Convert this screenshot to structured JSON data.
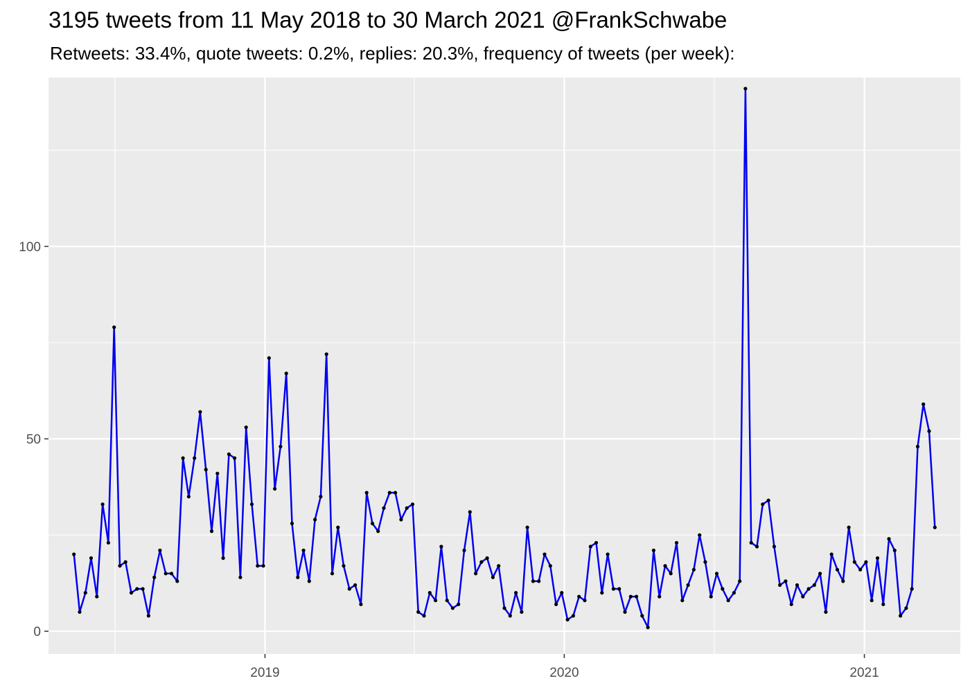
{
  "chart_data": {
    "type": "line",
    "title": "3195 tweets from 11 May 2018 to 30 March 2021 @FrankSchwabe",
    "subtitle": "Retweets: 33.4%, quote tweets: 0.2%, replies: 20.3%, frequency of tweets (per week):",
    "xlabel": "",
    "ylabel": "",
    "x_axis": {
      "type": "date",
      "ticks": [
        "2019",
        "2020",
        "2021"
      ],
      "range": [
        "2018-04-12",
        "2021-04-28"
      ]
    },
    "y_axis": {
      "ticks": [
        0,
        50,
        100
      ],
      "range": [
        -5.9,
        143.9
      ]
    },
    "grid": true,
    "legend": "none",
    "colors": {
      "line": "#0000ee",
      "point": "#000000",
      "panel": "#ebebeb",
      "grid": "#ffffff"
    },
    "series": [
      {
        "x": [
          "2018-05-13",
          "2018-05-20",
          "2018-05-27",
          "2018-06-03",
          "2018-06-10",
          "2018-06-17",
          "2018-06-24",
          "2018-07-01",
          "2018-07-08",
          "2018-07-15",
          "2018-07-22",
          "2018-07-29",
          "2018-08-05",
          "2018-08-12",
          "2018-08-19",
          "2018-08-26",
          "2018-09-02",
          "2018-09-09",
          "2018-09-16",
          "2018-09-23",
          "2018-09-30",
          "2018-10-07",
          "2018-10-14",
          "2018-10-21",
          "2018-10-28",
          "2018-11-04",
          "2018-11-11",
          "2018-11-18",
          "2018-11-25",
          "2018-12-02",
          "2018-12-09",
          "2018-12-16",
          "2018-12-23",
          "2018-12-30",
          "2019-01-06",
          "2019-01-13",
          "2019-01-20",
          "2019-01-27",
          "2019-02-03",
          "2019-02-10",
          "2019-02-17",
          "2019-02-24",
          "2019-03-03",
          "2019-03-10",
          "2019-03-17",
          "2019-03-24",
          "2019-03-31",
          "2019-04-07",
          "2019-04-14",
          "2019-04-21",
          "2019-04-28",
          "2019-05-05",
          "2019-05-12",
          "2019-05-19",
          "2019-05-26",
          "2019-06-02",
          "2019-06-09",
          "2019-06-16",
          "2019-06-23",
          "2019-06-30",
          "2019-07-07",
          "2019-07-14",
          "2019-07-21",
          "2019-07-28",
          "2019-08-04",
          "2019-08-11",
          "2019-08-18",
          "2019-08-25",
          "2019-09-01",
          "2019-09-08",
          "2019-09-15",
          "2019-09-22",
          "2019-09-29",
          "2019-10-06",
          "2019-10-13",
          "2019-10-20",
          "2019-10-27",
          "2019-11-03",
          "2019-11-10",
          "2019-11-17",
          "2019-11-24",
          "2019-12-01",
          "2019-12-08",
          "2019-12-15",
          "2019-12-22",
          "2019-12-29",
          "2020-01-05",
          "2020-01-12",
          "2020-01-19",
          "2020-01-26",
          "2020-02-02",
          "2020-02-09",
          "2020-02-16",
          "2020-02-23",
          "2020-03-01",
          "2020-03-08",
          "2020-03-15",
          "2020-03-22",
          "2020-03-29",
          "2020-04-05",
          "2020-04-12",
          "2020-04-19",
          "2020-04-26",
          "2020-05-03",
          "2020-05-10",
          "2020-05-17",
          "2020-05-24",
          "2020-05-31",
          "2020-06-07",
          "2020-06-14",
          "2020-06-21",
          "2020-06-28",
          "2020-07-05",
          "2020-07-12",
          "2020-07-19",
          "2020-07-26",
          "2020-08-02",
          "2020-08-09",
          "2020-08-16",
          "2020-08-23",
          "2020-08-30",
          "2020-09-06",
          "2020-09-13",
          "2020-09-20",
          "2020-09-27",
          "2020-10-04",
          "2020-10-11",
          "2020-10-18",
          "2020-10-25",
          "2020-11-01",
          "2020-11-08",
          "2020-11-15",
          "2020-11-22",
          "2020-11-29",
          "2020-12-06",
          "2020-12-13",
          "2020-12-20",
          "2020-12-27",
          "2021-01-03",
          "2021-01-10",
          "2021-01-17",
          "2021-01-24",
          "2021-01-31",
          "2021-02-07",
          "2021-02-14",
          "2021-02-21",
          "2021-02-28",
          "2021-03-07",
          "2021-03-14",
          "2021-03-21",
          "2021-03-28"
        ],
        "y": [
          20,
          5,
          10,
          19,
          9,
          33,
          23,
          79,
          17,
          18,
          10,
          11,
          11,
          4,
          14,
          21,
          15,
          15,
          13,
          45,
          35,
          45,
          57,
          42,
          26,
          41,
          19,
          46,
          45,
          14,
          53,
          33,
          17,
          17,
          71,
          37,
          48,
          67,
          28,
          14,
          21,
          13,
          29,
          35,
          72,
          15,
          27,
          17,
          11,
          12,
          7,
          36,
          28,
          26,
          32,
          36,
          36,
          29,
          32,
          33,
          5,
          4,
          10,
          8,
          22,
          8,
          6,
          7,
          21,
          31,
          15,
          18,
          19,
          14,
          17,
          6,
          4,
          10,
          5,
          27,
          13,
          13,
          20,
          17,
          7,
          10,
          3,
          4,
          9,
          8,
          22,
          23,
          10,
          20,
          11,
          11,
          5,
          9,
          9,
          4,
          1,
          21,
          9,
          17,
          15,
          23,
          8,
          12,
          16,
          25,
          18,
          9,
          15,
          11,
          8,
          10,
          13,
          141,
          23,
          22,
          33,
          34,
          22,
          12,
          13,
          7,
          12,
          9,
          11,
          12,
          15,
          5,
          20,
          16,
          13,
          27,
          18,
          16,
          18,
          8,
          19,
          7,
          24,
          21,
          4,
          6,
          11,
          48,
          59,
          52,
          27
        ]
      }
    ]
  }
}
